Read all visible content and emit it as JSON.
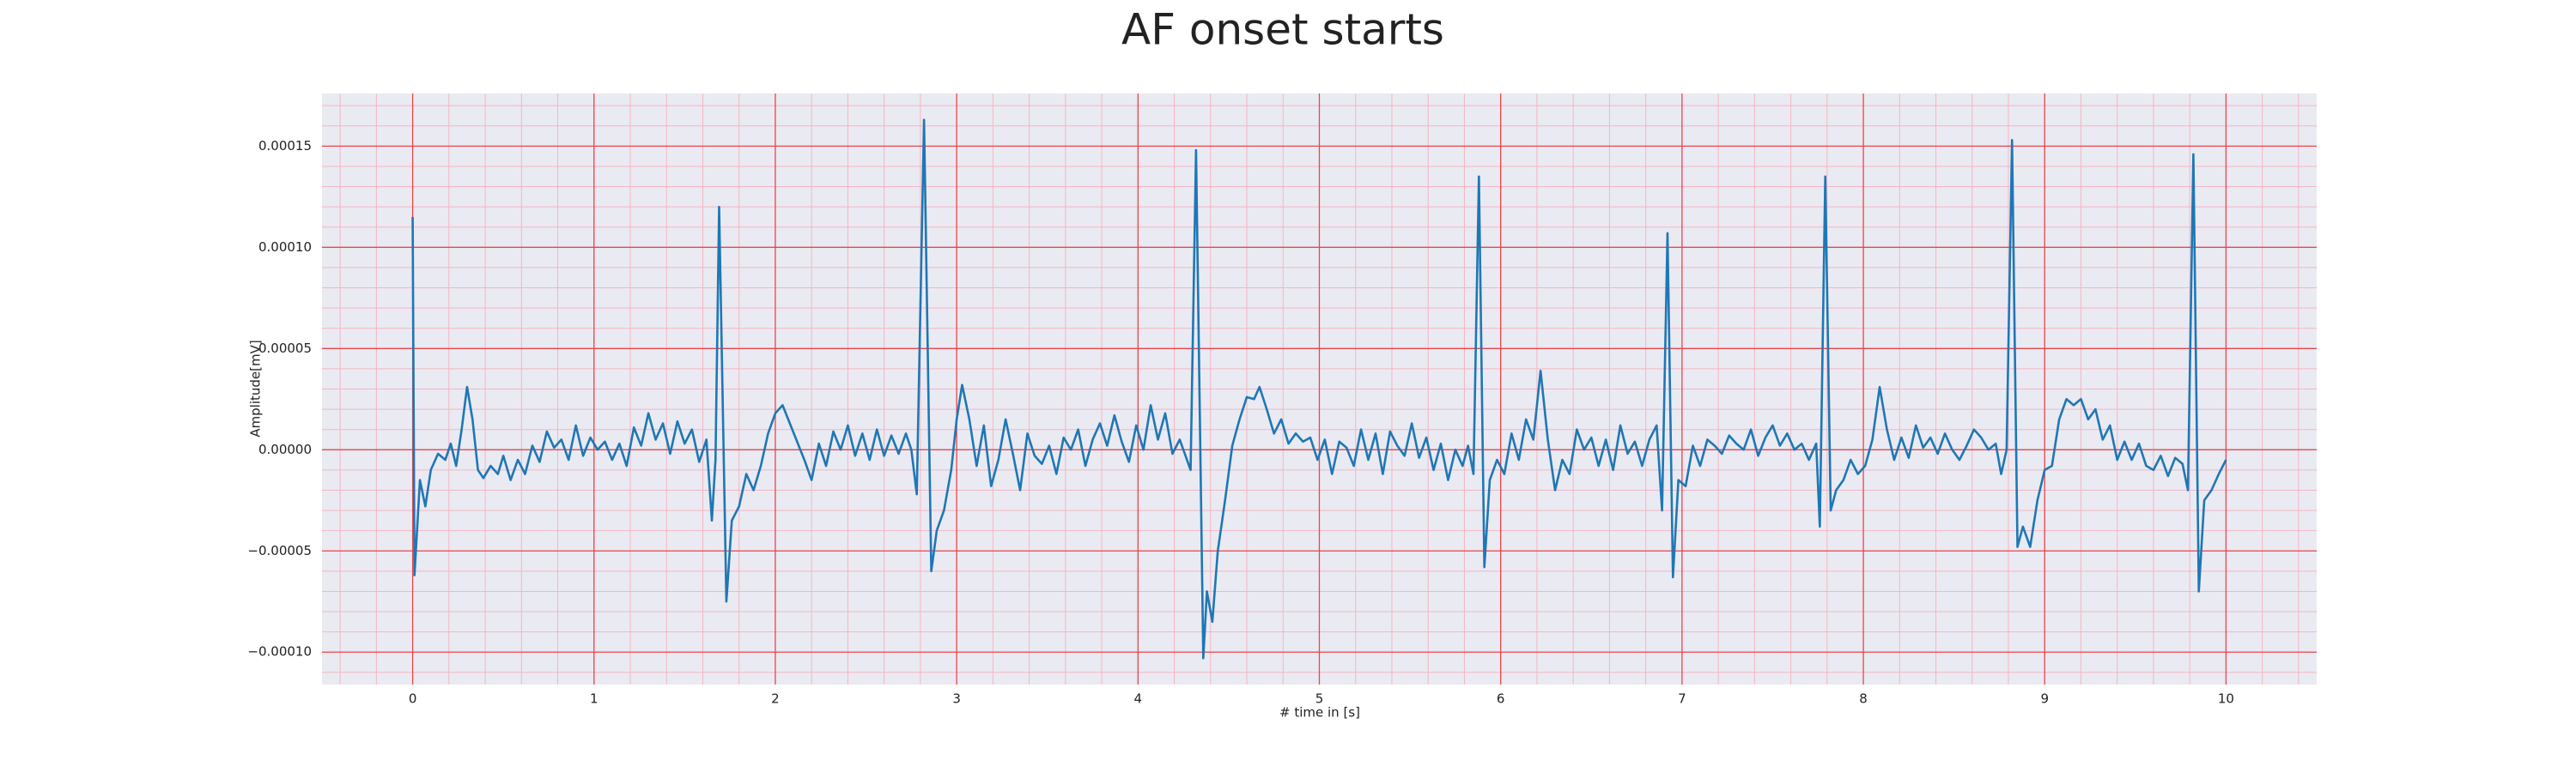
{
  "chart_data": {
    "type": "line",
    "title": "AF onset starts",
    "xlabel": "# time in [s]",
    "ylabel": "Amplitude[mV]",
    "color": "#1f77b4",
    "grid": true,
    "minor_grid": true,
    "xlim": [
      -0.5,
      10.5
    ],
    "xticks": [
      0,
      1,
      2,
      3,
      4,
      5,
      6,
      7,
      8,
      9,
      10
    ],
    "ylim": [
      -0.000116,
      0.000176
    ],
    "yticks": [
      {
        "value": -0.0001,
        "label": "−0.00010"
      },
      {
        "value": -5e-05,
        "label": "−0.00005"
      },
      {
        "value": 0,
        "label": "0.00000"
      },
      5e-05,
      {
        "value": 0.0001,
        "label": "0.00010"
      },
      0.00015
    ],
    "x": [
      0,
      0.01,
      0.04,
      0.07,
      0.1,
      0.14,
      0.18,
      0.21,
      0.24,
      0.27,
      0.3,
      0.33,
      0.36,
      0.39,
      0.43,
      0.47,
      0.5,
      0.54,
      0.58,
      0.62,
      0.66,
      0.7,
      0.74,
      0.78,
      0.82,
      0.86,
      0.9,
      0.94,
      0.98,
      1.02,
      1.06,
      1.1,
      1.14,
      1.18,
      1.22,
      1.26,
      1.3,
      1.34,
      1.38,
      1.42,
      1.46,
      1.5,
      1.54,
      1.58,
      1.62,
      1.65,
      1.67,
      1.69,
      1.73,
      1.76,
      1.8,
      1.84,
      1.88,
      1.92,
      1.96,
      2.0,
      2.04,
      2.08,
      2.12,
      2.16,
      2.2,
      2.24,
      2.28,
      2.32,
      2.36,
      2.4,
      2.44,
      2.48,
      2.52,
      2.56,
      2.6,
      2.64,
      2.68,
      2.72,
      2.75,
      2.78,
      2.82,
      2.86,
      2.89,
      2.93,
      2.97,
      3.0,
      3.03,
      3.07,
      3.11,
      3.15,
      3.19,
      3.23,
      3.27,
      3.31,
      3.35,
      3.39,
      3.43,
      3.47,
      3.51,
      3.55,
      3.59,
      3.63,
      3.67,
      3.71,
      3.75,
      3.79,
      3.83,
      3.87,
      3.91,
      3.95,
      3.99,
      4.03,
      4.07,
      4.11,
      4.15,
      4.19,
      4.23,
      4.27,
      4.29,
      4.32,
      4.36,
      4.38,
      4.41,
      4.44,
      4.48,
      4.52,
      4.56,
      4.6,
      4.64,
      4.67,
      4.71,
      4.75,
      4.79,
      4.83,
      4.87,
      4.91,
      4.95,
      4.99,
      5.03,
      5.07,
      5.11,
      5.15,
      5.19,
      5.23,
      5.27,
      5.31,
      5.35,
      5.39,
      5.43,
      5.47,
      5.51,
      5.55,
      5.59,
      5.63,
      5.67,
      5.71,
      5.75,
      5.79,
      5.82,
      5.85,
      5.88,
      5.91,
      5.94,
      5.98,
      6.02,
      6.06,
      6.1,
      6.14,
      6.18,
      6.22,
      6.26,
      6.3,
      6.34,
      6.38,
      6.42,
      6.46,
      6.5,
      6.54,
      6.58,
      6.62,
      6.66,
      6.7,
      6.74,
      6.78,
      6.82,
      6.86,
      6.89,
      6.92,
      6.95,
      6.98,
      7.02,
      7.06,
      7.1,
      7.14,
      7.18,
      7.22,
      7.26,
      7.3,
      7.34,
      7.38,
      7.42,
      7.46,
      7.5,
      7.54,
      7.58,
      7.62,
      7.66,
      7.7,
      7.74,
      7.76,
      7.79,
      7.82,
      7.85,
      7.89,
      7.93,
      7.97,
      8.01,
      8.05,
      8.09,
      8.13,
      8.17,
      8.21,
      8.25,
      8.29,
      8.33,
      8.37,
      8.41,
      8.45,
      8.49,
      8.53,
      8.57,
      8.61,
      8.65,
      8.69,
      8.73,
      8.76,
      8.79,
      8.82,
      8.85,
      8.88,
      8.92,
      8.96,
      9.0,
      9.04,
      9.08,
      9.12,
      9.16,
      9.2,
      9.24,
      9.28,
      9.32,
      9.36,
      9.4,
      9.44,
      9.48,
      9.52,
      9.56,
      9.6,
      9.64,
      9.68,
      9.72,
      9.76,
      9.79,
      9.82,
      9.85,
      9.88,
      9.92,
      9.96,
      10.0
    ],
    "values": [
      0.000115,
      -6.2e-05,
      -1.5e-05,
      -2.8e-05,
      -1e-05,
      -2e-06,
      -5e-06,
      3e-06,
      -8e-06,
      1e-05,
      3.1e-05,
      1.5e-05,
      -1e-05,
      -1.4e-05,
      -8e-06,
      -1.2e-05,
      -3e-06,
      -1.5e-05,
      -5e-06,
      -1.2e-05,
      2e-06,
      -6e-06,
      9e-06,
      1e-06,
      5e-06,
      -5e-06,
      1.2e-05,
      -3e-06,
      6e-06,
      0,
      4e-06,
      -5e-06,
      3e-06,
      -8e-06,
      1.1e-05,
      2e-06,
      1.8e-05,
      5e-06,
      1.3e-05,
      -2e-06,
      1.4e-05,
      3e-06,
      1e-05,
      -6e-06,
      5e-06,
      -3.5e-05,
      -5e-06,
      0.00012,
      -7.5e-05,
      -3.5e-05,
      -2.8e-05,
      -1.2e-05,
      -2e-05,
      -8e-06,
      8e-06,
      1.8e-05,
      2.2e-05,
      1.3e-05,
      4e-06,
      -5e-06,
      -1.5e-05,
      3e-06,
      -8e-06,
      9e-06,
      0,
      1.2e-05,
      -3e-06,
      8e-06,
      -5e-06,
      1e-05,
      -3e-06,
      7e-06,
      -2e-06,
      8e-06,
      0,
      -2.2e-05,
      0.000163,
      -6e-05,
      -4e-05,
      -3e-05,
      -1e-05,
      1.5e-05,
      3.2e-05,
      1.5e-05,
      -8e-06,
      1.2e-05,
      -1.8e-05,
      -5e-06,
      1.5e-05,
      -2e-06,
      -2e-05,
      8e-06,
      -3e-06,
      -7e-06,
      2e-06,
      -1.2e-05,
      6e-06,
      0,
      1e-05,
      -8e-06,
      5e-06,
      1.3e-05,
      2e-06,
      1.7e-05,
      4e-06,
      -6e-06,
      1.2e-05,
      0,
      2.2e-05,
      5e-06,
      1.8e-05,
      -2e-06,
      5e-06,
      -5e-06,
      -1e-05,
      0.000148,
      -0.000103,
      -7e-05,
      -8.5e-05,
      -5e-05,
      -2.5e-05,
      2e-06,
      1.5e-05,
      2.6e-05,
      2.5e-05,
      3.1e-05,
      2e-05,
      8e-06,
      1.5e-05,
      3e-06,
      8e-06,
      4e-06,
      6e-06,
      -5e-06,
      5e-06,
      -1.2e-05,
      4e-06,
      1e-06,
      -8e-06,
      1e-05,
      -5e-06,
      8e-06,
      -1.2e-05,
      9e-06,
      2e-06,
      -3e-06,
      1.3e-05,
      -4e-06,
      6e-06,
      -1e-05,
      3e-06,
      -1.5e-05,
      0,
      -8e-06,
      2e-06,
      -1.2e-05,
      0.000135,
      -5.8e-05,
      -1.5e-05,
      -5e-06,
      -1.2e-05,
      8e-06,
      -5e-06,
      1.5e-05,
      5e-06,
      3.9e-05,
      5e-06,
      -2e-05,
      -5e-06,
      -1.2e-05,
      1e-05,
      0,
      6e-06,
      -8e-06,
      5e-06,
      -1e-05,
      1.2e-05,
      -2e-06,
      4e-06,
      -8e-06,
      5e-06,
      1.2e-05,
      -3e-05,
      0.000107,
      -6.3e-05,
      -1.5e-05,
      -1.8e-05,
      2e-06,
      -8e-06,
      5e-06,
      2e-06,
      -2e-06,
      7e-06,
      3e-06,
      0,
      1e-05,
      -3e-06,
      6e-06,
      1.2e-05,
      2e-06,
      8e-06,
      0,
      3e-06,
      -5e-06,
      3e-06,
      -3.8e-05,
      0.000135,
      -3e-05,
      -2e-05,
      -1.5e-05,
      -5e-06,
      -1.2e-05,
      -8e-06,
      5e-06,
      3.1e-05,
      1e-05,
      -5e-06,
      6e-06,
      -4e-06,
      1.2e-05,
      1e-06,
      6e-06,
      -2e-06,
      8e-06,
      0,
      -5e-06,
      2e-06,
      1e-05,
      6e-06,
      0,
      3e-06,
      -1.2e-05,
      0,
      0.000153,
      -4.8e-05,
      -3.8e-05,
      -4.8e-05,
      -2.5e-05,
      -1e-05,
      -8e-06,
      1.5e-05,
      2.5e-05,
      2.2e-05,
      2.5e-05,
      1.5e-05,
      2e-05,
      5e-06,
      1.2e-05,
      -5e-06,
      4e-06,
      -5e-06,
      3e-06,
      -8e-06,
      -1e-05,
      -3e-06,
      -1.3e-05,
      -4e-06,
      -7e-06,
      -2e-05,
      0.000146,
      -7e-05,
      -2.5e-05,
      -2e-05,
      -1.2e-05,
      -5e-06
    ]
  }
}
